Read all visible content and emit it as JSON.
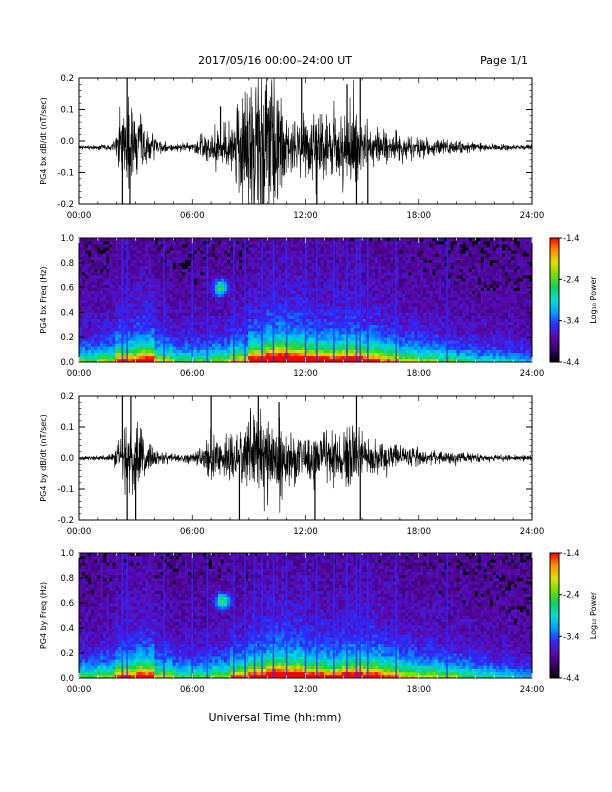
{
  "header": {
    "title": "2017/05/16  00:00–24:00 UT",
    "page": "Page 1/1"
  },
  "colors": {
    "trace": "#000000",
    "spectrogram_background": "#000000",
    "colormap": [
      "#000000",
      "#3a006a",
      "#5a0ab0",
      "#2c2cff",
      "#00a0ff",
      "#00e0d0",
      "#10d060",
      "#70e000",
      "#e0e000",
      "#ff9000",
      "#ff0000"
    ]
  },
  "chart_data": [
    {
      "id": "bx-dbdt",
      "type": "line",
      "ylabel": "PG4 bx dB/dt (nT/sec)",
      "ylim": [
        -0.2,
        0.2
      ],
      "xlim": [
        0,
        24
      ],
      "x_tick_labels": [
        "00:00",
        "06:00",
        "12:00",
        "18:00",
        "24:00"
      ],
      "y_tick_labels": [
        "0.2",
        "0.1",
        "0.0",
        "-0.1",
        "-0.2"
      ],
      "baseline": -0.02,
      "activity_envelope": {
        "x": [
          0,
          1.5,
          2.0,
          2.4,
          2.8,
          3.5,
          4.2,
          5.0,
          6.0,
          6.8,
          7.2,
          7.5,
          8.0,
          8.5,
          9.0,
          9.5,
          10.0,
          10.5,
          11.0,
          11.5,
          12.0,
          12.5,
          13.0,
          13.5,
          14.0,
          14.5,
          15.0,
          15.5,
          16.0,
          17.0,
          18.0,
          19.0,
          20.0,
          21.0,
          22.0,
          23.0,
          24.0
        ],
        "amplitude": [
          0.005,
          0.008,
          0.03,
          0.18,
          0.15,
          0.05,
          0.02,
          0.01,
          0.012,
          0.04,
          0.07,
          0.04,
          0.09,
          0.14,
          0.22,
          0.25,
          0.25,
          0.2,
          0.12,
          0.08,
          0.1,
          0.12,
          0.09,
          0.11,
          0.12,
          0.15,
          0.08,
          0.06,
          0.05,
          0.04,
          0.03,
          0.025,
          0.02,
          0.012,
          0.01,
          0.008,
          0.008
        ]
      },
      "spikes": [
        {
          "x": 2.3,
          "y": -0.2
        },
        {
          "x": 2.55,
          "y": 0.2
        },
        {
          "x": 2.7,
          "y": -0.2
        },
        {
          "x": 7.5,
          "y": 0.11
        },
        {
          "x": 9.7,
          "y": -0.2
        },
        {
          "x": 11.8,
          "y": 0.2
        },
        {
          "x": 12.6,
          "y": -0.2
        },
        {
          "x": 14.2,
          "y": 0.18
        },
        {
          "x": 14.7,
          "y": -0.2
        },
        {
          "x": 14.9,
          "y": 0.2
        },
        {
          "x": 15.3,
          "y": -0.2
        }
      ]
    },
    {
      "id": "bx-spectrogram",
      "type": "heatmap",
      "ylabel": "PG4 bx Freq (Hz)",
      "xlim": [
        0,
        24
      ],
      "ylim": [
        0,
        1.0
      ],
      "x_tick_labels": [
        "00:00",
        "06:00",
        "12:00",
        "18:00",
        "24:00"
      ],
      "y_tick_labels": [
        "1.0",
        "0.8",
        "0.6",
        "0.4",
        "0.2",
        "0.0"
      ],
      "colorbar": {
        "label": "Log₁₀ Power",
        "range": [
          -4.4,
          -1.4
        ],
        "tick_labels": [
          "-1.4",
          "-2.4",
          "-3.4",
          "-4.4"
        ]
      },
      "broadband_lines_hours": [
        2.3,
        2.55,
        4.5,
        6.0,
        6.8,
        8.2,
        8.8,
        9.7,
        10.3,
        11.0,
        12.0,
        12.6,
        13.5,
        14.2,
        14.7,
        14.9,
        15.3,
        16.8,
        19.5
      ],
      "activity_by_hour": [
        0.35,
        0.4,
        0.6,
        0.7,
        0.45,
        0.35,
        0.35,
        0.4,
        0.5,
        0.75,
        0.9,
        0.85,
        0.75,
        0.7,
        0.75,
        0.65,
        0.55,
        0.45,
        0.4,
        0.35,
        0.3,
        0.25,
        0.25,
        0.2
      ],
      "feature": {
        "x": 7.5,
        "freq": 0.6,
        "note": "blob"
      }
    },
    {
      "id": "by-dbdt",
      "type": "line",
      "ylabel": "PG4 by dB/dt (nT/sec)",
      "ylim": [
        -0.2,
        0.2
      ],
      "xlim": [
        0,
        24
      ],
      "x_tick_labels": [
        "00:00",
        "06:00",
        "12:00",
        "18:00",
        "24:00"
      ],
      "y_tick_labels": [
        "0.2",
        "0.1",
        "0.0",
        "-0.1",
        "-0.2"
      ],
      "baseline": 0.0,
      "activity_envelope": {
        "x": [
          0,
          1.5,
          2.0,
          2.4,
          2.8,
          3.5,
          4.2,
          5.0,
          6.0,
          6.8,
          7.2,
          7.5,
          8.0,
          8.5,
          9.0,
          9.5,
          10.0,
          10.5,
          11.0,
          11.5,
          12.0,
          12.5,
          13.0,
          13.5,
          14.0,
          14.5,
          15.0,
          15.5,
          16.0,
          17.0,
          18.0,
          19.0,
          20.0,
          21.0,
          22.0,
          23.0,
          24.0
        ],
        "amplitude": [
          0.006,
          0.008,
          0.03,
          0.13,
          0.12,
          0.05,
          0.02,
          0.012,
          0.015,
          0.05,
          0.08,
          0.05,
          0.07,
          0.08,
          0.12,
          0.14,
          0.15,
          0.12,
          0.09,
          0.07,
          0.07,
          0.09,
          0.07,
          0.08,
          0.09,
          0.1,
          0.07,
          0.05,
          0.045,
          0.035,
          0.03,
          0.02,
          0.018,
          0.012,
          0.01,
          0.008,
          0.008
        ]
      },
      "spikes": [
        {
          "x": 2.3,
          "y": 0.2
        },
        {
          "x": 2.55,
          "y": -0.2
        },
        {
          "x": 2.75,
          "y": 0.2
        },
        {
          "x": 3.0,
          "y": -0.2
        },
        {
          "x": 7.0,
          "y": 0.2
        },
        {
          "x": 8.5,
          "y": -0.2
        },
        {
          "x": 9.5,
          "y": 0.2
        },
        {
          "x": 10.6,
          "y": 0.18
        },
        {
          "x": 12.5,
          "y": -0.2
        },
        {
          "x": 14.7,
          "y": 0.2
        },
        {
          "x": 14.9,
          "y": -0.2
        }
      ]
    },
    {
      "id": "by-spectrogram",
      "type": "heatmap",
      "ylabel": "PG4 by Freq (Hz)",
      "xlim": [
        0,
        24
      ],
      "ylim": [
        0,
        1.0
      ],
      "x_tick_labels": [
        "00:00",
        "06:00",
        "12:00",
        "18:00",
        "24:00"
      ],
      "y_tick_labels": [
        "1.0",
        "0.8",
        "0.6",
        "0.4",
        "0.2",
        "0.0"
      ],
      "colorbar": {
        "label": "Log₁₀ Power",
        "range": [
          -4.4,
          -1.4
        ],
        "tick_labels": [
          "-1.4",
          "-2.4",
          "-3.4",
          "-4.4"
        ]
      },
      "broadband_lines_hours": [
        2.3,
        2.55,
        4.5,
        6.0,
        6.8,
        8.2,
        8.8,
        9.3,
        9.7,
        10.3,
        11.0,
        12.0,
        12.6,
        13.5,
        14.2,
        14.7,
        14.9,
        15.3,
        16.8,
        19.5
      ],
      "activity_by_hour": [
        0.35,
        0.4,
        0.6,
        0.7,
        0.45,
        0.35,
        0.35,
        0.4,
        0.55,
        0.7,
        0.85,
        0.8,
        0.7,
        0.65,
        0.75,
        0.7,
        0.6,
        0.5,
        0.45,
        0.4,
        0.35,
        0.3,
        0.25,
        0.2
      ],
      "feature": {
        "x": 7.6,
        "freq": 0.62,
        "note": "blob"
      }
    }
  ],
  "footer": {
    "xlabel": "Universal Time (hh:mm)"
  }
}
